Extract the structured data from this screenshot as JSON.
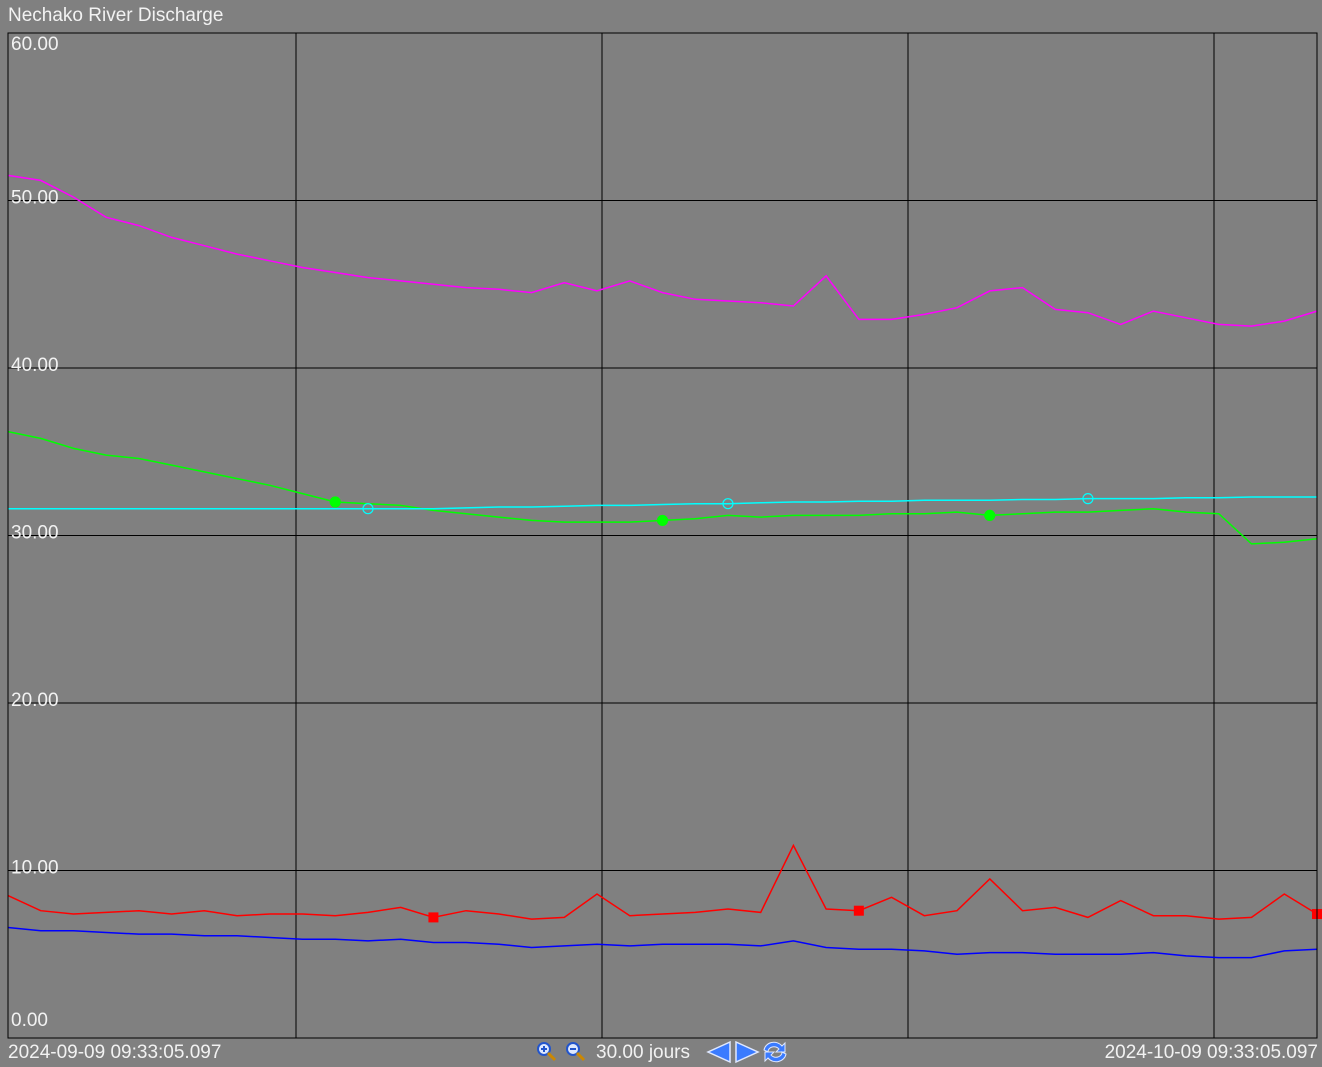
{
  "chart_data": {
    "type": "line",
    "title": "Nechako River Discharge",
    "start_label": "2024-09-09 09:33:05.097",
    "end_label": "2024-10-09 09:33:05.097",
    "span_label": "30.00 jours",
    "ylim": [
      0,
      60
    ],
    "yticks": [
      {
        "value": 0,
        "label": "0.00"
      },
      {
        "value": 10,
        "label": "10.00"
      },
      {
        "value": 20,
        "label": "20.00"
      },
      {
        "value": 30,
        "label": "30.00"
      },
      {
        "value": 40,
        "label": "40.00"
      },
      {
        "value": 50,
        "label": "50.00"
      },
      {
        "value": 60,
        "label": "60.00"
      }
    ],
    "grid": true,
    "series": [
      {
        "color": "#ff00ff",
        "values": [
          51.5,
          51.2,
          50.2,
          49.0,
          48.5,
          47.8,
          47.3,
          46.8,
          46.4,
          46.0,
          45.7,
          45.4,
          45.2,
          45.0,
          44.8,
          44.7,
          44.5,
          45.1,
          44.6,
          45.2,
          44.5,
          44.1,
          44.0,
          43.9,
          43.7,
          45.5,
          42.9,
          42.9,
          43.2,
          43.6,
          44.6,
          44.8,
          43.5,
          43.3,
          42.6,
          43.4,
          43.0,
          42.6,
          42.5,
          42.8,
          43.4
        ]
      },
      {
        "color": "#00ff00",
        "marker": "filled-circle",
        "values": [
          36.2,
          35.8,
          35.2,
          34.8,
          34.6,
          34.2,
          33.8,
          33.4,
          33.0,
          32.5,
          32.0,
          31.9,
          31.8,
          31.5,
          31.3,
          31.1,
          30.9,
          30.8,
          30.8,
          30.8,
          30.9,
          31.0,
          31.2,
          31.1,
          31.2,
          31.2,
          31.2,
          31.3,
          31.3,
          31.4,
          31.2,
          31.3,
          31.4,
          31.4,
          31.5,
          31.6,
          31.4,
          31.3,
          29.5,
          29.6,
          29.8
        ]
      },
      {
        "color": "#00ffff",
        "marker": "open-circle",
        "values": [
          31.6,
          31.6,
          31.6,
          31.6,
          31.6,
          31.6,
          31.6,
          31.6,
          31.6,
          31.6,
          31.6,
          31.6,
          31.6,
          31.6,
          31.65,
          31.7,
          31.7,
          31.75,
          31.8,
          31.8,
          31.85,
          31.9,
          31.9,
          31.95,
          32.0,
          32.0,
          32.05,
          32.05,
          32.1,
          32.1,
          32.1,
          32.15,
          32.15,
          32.2,
          32.2,
          32.2,
          32.25,
          32.25,
          32.3,
          32.3,
          32.3
        ]
      },
      {
        "color": "#ff0000",
        "marker": "square",
        "values": [
          8.5,
          7.6,
          7.4,
          7.5,
          7.6,
          7.4,
          7.6,
          7.3,
          7.4,
          7.4,
          7.3,
          7.5,
          7.8,
          7.2,
          7.6,
          7.4,
          7.1,
          7.2,
          8.6,
          7.3,
          7.4,
          7.5,
          7.7,
          7.5,
          11.5,
          7.7,
          7.6,
          8.4,
          7.3,
          7.6,
          9.5,
          7.6,
          7.8,
          7.2,
          8.2,
          7.3,
          7.3,
          7.1,
          7.2,
          8.6,
          7.4
        ]
      },
      {
        "color": "#0000ff",
        "values": [
          6.6,
          6.4,
          6.4,
          6.3,
          6.2,
          6.2,
          6.1,
          6.1,
          6.0,
          5.9,
          5.9,
          5.8,
          5.9,
          5.7,
          5.7,
          5.6,
          5.4,
          5.5,
          5.6,
          5.5,
          5.6,
          5.6,
          5.6,
          5.5,
          5.8,
          5.4,
          5.3,
          5.3,
          5.2,
          5.0,
          5.1,
          5.1,
          5.0,
          5.0,
          5.0,
          5.1,
          4.9,
          4.8,
          4.8,
          5.2,
          5.3
        ]
      }
    ]
  }
}
